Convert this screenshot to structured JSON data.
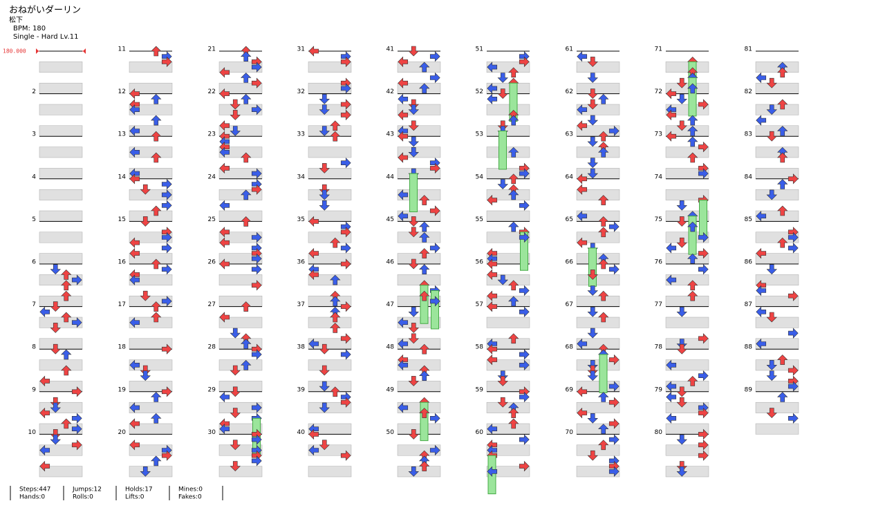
{
  "header": {
    "title": "おねがいダーリン",
    "artist": "松下",
    "bpm": "BPM: 180",
    "difficulty": "Single - Hard  Lv.11",
    "bpm_marker": "180.000"
  },
  "measure_labels": [
    2,
    3,
    4,
    5,
    6,
    7,
    8,
    9,
    10,
    11,
    12,
    13,
    14,
    15,
    16,
    17,
    18,
    19,
    20,
    21,
    22,
    23,
    24,
    25,
    26,
    27,
    28,
    29,
    30,
    31,
    32,
    33,
    34,
    35,
    36,
    37,
    38,
    39,
    40,
    41,
    42,
    43,
    44,
    45,
    46,
    47,
    48,
    49,
    50,
    51,
    52,
    53,
    54,
    55,
    56,
    57,
    58,
    59,
    60,
    61,
    62,
    63,
    64,
    65,
    66,
    67,
    68,
    69,
    70,
    71,
    72,
    73,
    74,
    75,
    76,
    77,
    78,
    79,
    80,
    81,
    82,
    83,
    84,
    85,
    86,
    87,
    88,
    89
  ],
  "stats": [
    [
      "Steps:447",
      "Hands:0"
    ],
    [
      "Jumps:12",
      "Rolls:0"
    ],
    [
      "Holds:17",
      "Lifts:0"
    ],
    [
      "Mines:0",
      "Fakes:0"
    ]
  ]
}
